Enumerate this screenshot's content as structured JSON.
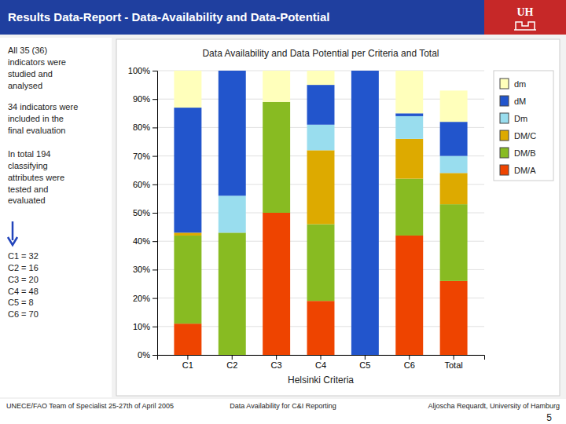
{
  "chart_data": {
    "type": "bar",
    "stacked": true,
    "title": "Results Data-Report - Data-Availability and Data-Potential",
    "subtitle": "Data Availability and Data Potential per Criteria and Total",
    "xlabel": "Helsinki Criteria",
    "categories": [
      "C1",
      "C2",
      "C3",
      "C4",
      "C5",
      "C6",
      "Total"
    ],
    "series": [
      {
        "name": "DM/A",
        "color": "#EE4400",
        "values": [
          11,
          0,
          50,
          19,
          0,
          42,
          26
        ]
      },
      {
        "name": "DM/B",
        "color": "#88BB22",
        "values": [
          31,
          43,
          39,
          27,
          0,
          20,
          27
        ]
      },
      {
        "name": "DM/C",
        "color": "#DDAA00",
        "values": [
          1,
          0,
          0,
          26,
          0,
          14,
          11
        ]
      },
      {
        "name": "Dm",
        "color": "#99DDEE",
        "values": [
          0,
          13,
          0,
          9,
          0,
          8,
          6
        ]
      },
      {
        "name": "dM",
        "color": "#2255CC",
        "values": [
          44,
          44,
          0,
          14,
          100,
          1,
          12
        ]
      },
      {
        "name": "dm",
        "color": "#FFFFBB",
        "values": [
          13,
          0,
          11,
          5,
          0,
          15,
          11
        ]
      }
    ],
    "ylim": [
      0,
      100
    ],
    "yticks": [
      {
        "value": 0,
        "label": "0%"
      },
      {
        "value": 10,
        "label": "10%"
      },
      {
        "value": 20,
        "label": "20%"
      },
      {
        "value": 30,
        "label": "30%"
      },
      {
        "value": 40,
        "label": "40%"
      },
      {
        "value": 50,
        "label": "50%"
      },
      {
        "value": 60,
        "label": "60%"
      },
      {
        "value": 70,
        "label": "70%"
      },
      {
        "value": 80,
        "label": "80%"
      },
      {
        "value": 90,
        "label": "90%"
      },
      {
        "value": 100,
        "label": "100%"
      }
    ],
    "grid": true,
    "legend": "right",
    "annotations": [
      "All 35 (36)\nindicators were\nstudied and\nanalysed",
      "34 indicators were\nincluded in the\nfinal evaluation",
      "In total 194\nclassifying\nattributes were\ntested and\nevaluated",
      "C1 = 32\nC2 = 16\nC3 = 20\nC4 = 48\nC5 = 8\nC6 = 70",
      "UNECE/FAO Team of Specialist  25-27th of April 2005",
      "Data Availability for C&I Reporting",
      "Aljoscha Requardt, University of Hamburg",
      "5",
      "UH"
    ]
  }
}
